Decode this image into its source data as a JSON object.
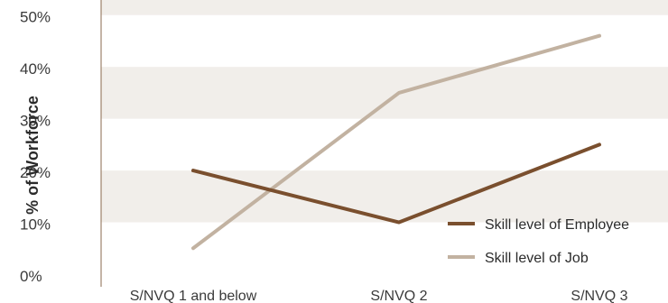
{
  "chart_data": {
    "type": "line",
    "title": "",
    "xlabel": "",
    "ylabel": "% of Workforce",
    "categories": [
      "S/NVQ 1 and below",
      "S/NVQ 2",
      "S/NVQ 3"
    ],
    "ylim": [
      0,
      55
    ],
    "yticks": [
      "0%",
      "10%",
      "20%",
      "30%",
      "40%",
      "50%"
    ],
    "ytick_values": [
      0,
      10,
      20,
      30,
      40,
      50
    ],
    "series": [
      {
        "name": "Skill level of Employee",
        "values": [
          20,
          10,
          25
        ],
        "color": "#7a4f2e"
      },
      {
        "name": "Skill level of Job",
        "values": [
          5,
          35,
          46
        ],
        "color": "#c2b2a1"
      }
    ],
    "legend_position": "bottom-right",
    "band_color": "#f1eeea",
    "axis_color": "#8a6a4f"
  }
}
